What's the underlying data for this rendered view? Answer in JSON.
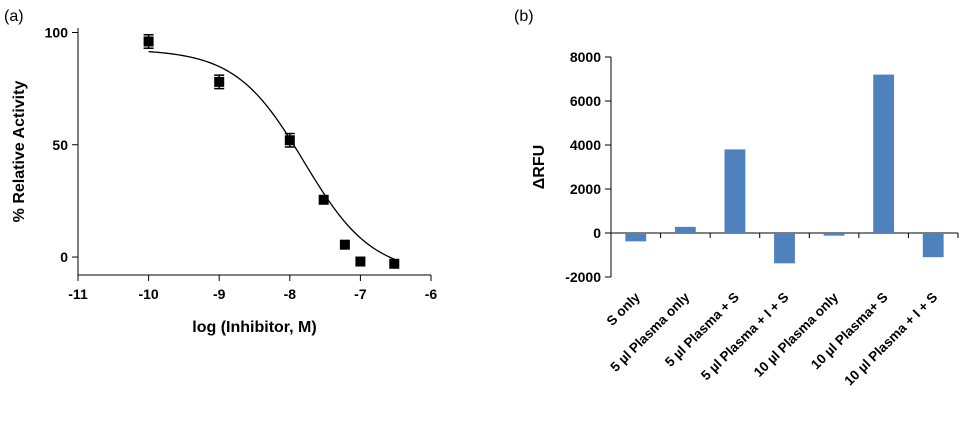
{
  "chart_data": [
    {
      "panel_label": "(a)",
      "type": "scatter",
      "xlabel": "log (Inhibitor, M)",
      "ylabel": "% Relative  Activity",
      "xlim": [
        -11,
        -6
      ],
      "ylim": [
        -8,
        102
      ],
      "xticks": [
        -11,
        -10,
        -9,
        -8,
        -7,
        -6
      ],
      "yticks": [
        0,
        50,
        100
      ],
      "x_tick_labels": [
        "-11",
        "-10",
        "-9",
        "-8",
        "-7",
        "-6"
      ],
      "y_tick_labels": [
        "0",
        "50",
        "100"
      ],
      "grid": false,
      "series": [
        {
          "points": [
            {
              "x": -10,
              "y": 96,
              "err": 3
            },
            {
              "x": -9,
              "y": 78,
              "err": 3
            },
            {
              "x": -8,
              "y": 52,
              "err": 3
            },
            {
              "x": -7.52,
              "y": 25.5,
              "err": 0
            },
            {
              "x": -7.22,
              "y": 5.5,
              "err": 0
            },
            {
              "x": -7,
              "y": -2,
              "err": 0
            },
            {
              "x": -6.52,
              "y": -3,
              "err": 0
            }
          ],
          "fit": {
            "bottom": -7.5,
            "top": 92.5,
            "log_ic50": -7.8,
            "hill": 0.9,
            "x_range": [
              -10,
              -6.52
            ]
          }
        }
      ]
    },
    {
      "panel_label": "(b)",
      "type": "bar",
      "ylabel": "ΔRFU",
      "xlabel": "",
      "ylim": [
        -2000,
        8000
      ],
      "yticks": [
        -2000,
        0,
        2000,
        4000,
        6000,
        8000
      ],
      "y_tick_labels": [
        "-2000",
        "0",
        "2000",
        "4000",
        "6000",
        "8000"
      ],
      "grid": false,
      "bar_color": "#4f81bd",
      "categories": [
        "S only",
        "5 µl Plasma only",
        "5 µl Plasma + S",
        "5 µl Plasma + I + S",
        "10 µl Plasma only",
        "10 µl Plasma+ S",
        "10 µl Plasma + I + S"
      ],
      "values": [
        -380,
        280,
        3800,
        -1380,
        -120,
        7200,
        -1100
      ]
    }
  ]
}
